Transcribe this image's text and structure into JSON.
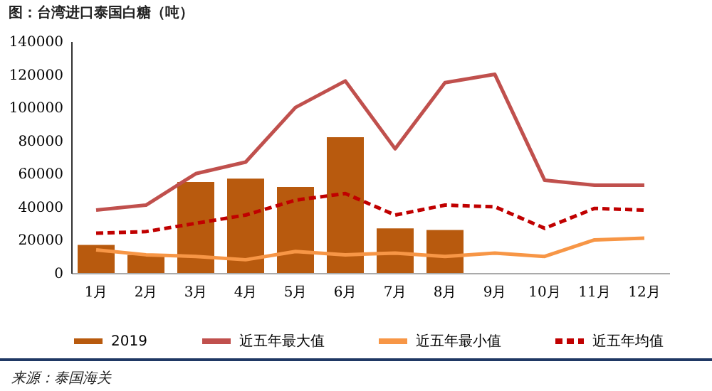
{
  "chart_data": {
    "type": "bar",
    "title": "图：台湾进口泰国白糖（吨）",
    "categories": [
      "1月",
      "2月",
      "3月",
      "4月",
      "5月",
      "6月",
      "7月",
      "8月",
      "9月",
      "10月",
      "11月",
      "12月"
    ],
    "series": [
      {
        "name": "2019",
        "color": "#b85a0e",
        "values": [
          17000,
          11000,
          55000,
          57000,
          52000,
          82000,
          27000,
          26000,
          null,
          null,
          null,
          null
        ]
      },
      {
        "name": "近五年最大值",
        "type": "line",
        "color": "#c0504d",
        "line_style": "solid",
        "values": [
          38000,
          41000,
          60000,
          67000,
          100000,
          116000,
          75000,
          115000,
          120000,
          56000,
          53000,
          53000
        ]
      },
      {
        "name": "近五年最小值",
        "type": "line",
        "color": "#f79646",
        "line_style": "solid",
        "values": [
          14000,
          11000,
          10000,
          8000,
          13000,
          11000,
          12000,
          10000,
          12000,
          10000,
          20000,
          21000
        ]
      },
      {
        "name": "近五年均值",
        "type": "line",
        "color": "#c00000",
        "line_style": "dashed",
        "values": [
          24000,
          25000,
          30000,
          35000,
          44000,
          48000,
          35000,
          41000,
          40000,
          27000,
          39000,
          38000
        ]
      }
    ],
    "ylim": [
      0,
      140000
    ],
    "yticks": [
      0,
      20000,
      40000,
      60000,
      80000,
      100000,
      120000,
      140000
    ],
    "grid": false,
    "legend": "bottom",
    "annotations": [
      "来源：泰国海关"
    ]
  }
}
